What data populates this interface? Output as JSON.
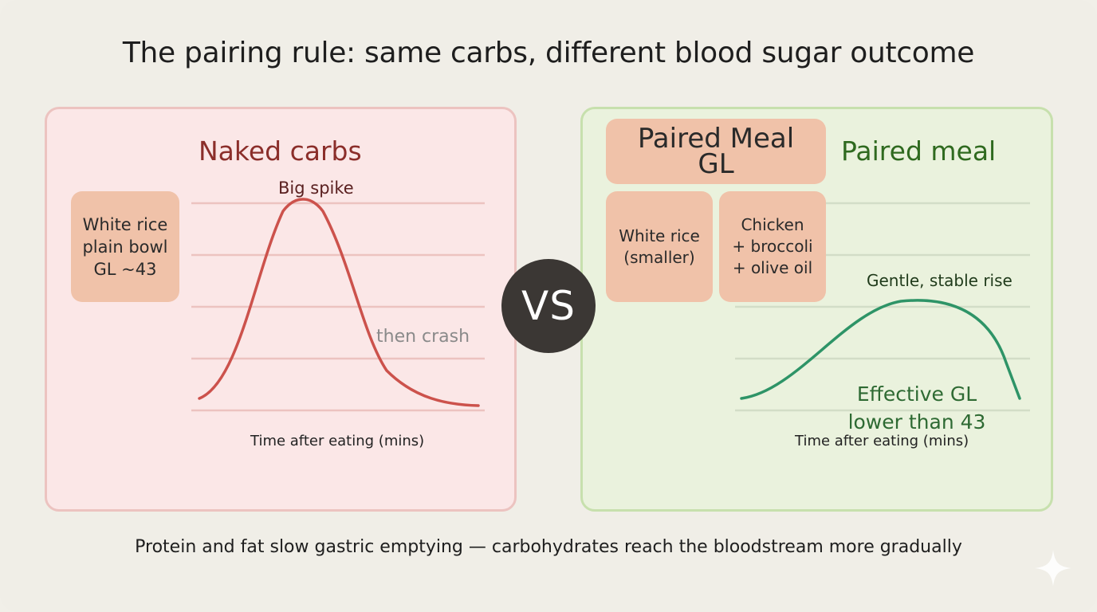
{
  "title": "The pairing rule: same carbs, different blood sugar outcome",
  "left_panel": {
    "heading": "Naked carbs",
    "food_box": "White rice\nplain bowl\nGL ~43",
    "peak_label": "Big spike",
    "crash_label": "then crash",
    "x_axis_label": "Time after eating (mins)"
  },
  "vs_label": "VS",
  "right_panel": {
    "heading": "Paired meal",
    "gl_box": "Paired Meal\nGL",
    "rice_box": "White rice\n(smaller)",
    "protein_box": "Chicken\n+ broccoli\n+ olive oil",
    "curve_label": "Gentle, stable rise",
    "effective_gl": "Effective GL\nlower than 43",
    "x_axis_label": "Time after eating (mins)"
  },
  "footer": "Protein and fat slow gastric emptying — carbohydrates reach the bloodstream more gradually",
  "colors": {
    "spike_curve": "#cc524c",
    "stable_curve": "#2e9467",
    "left_panel_bg": "#fbe7e7",
    "right_panel_bg": "#eaf2dd",
    "box_fill": "#f0c2a9",
    "vs_circle": "#3b3734"
  },
  "icons": {
    "corner_mark": "sparkle-icon"
  }
}
